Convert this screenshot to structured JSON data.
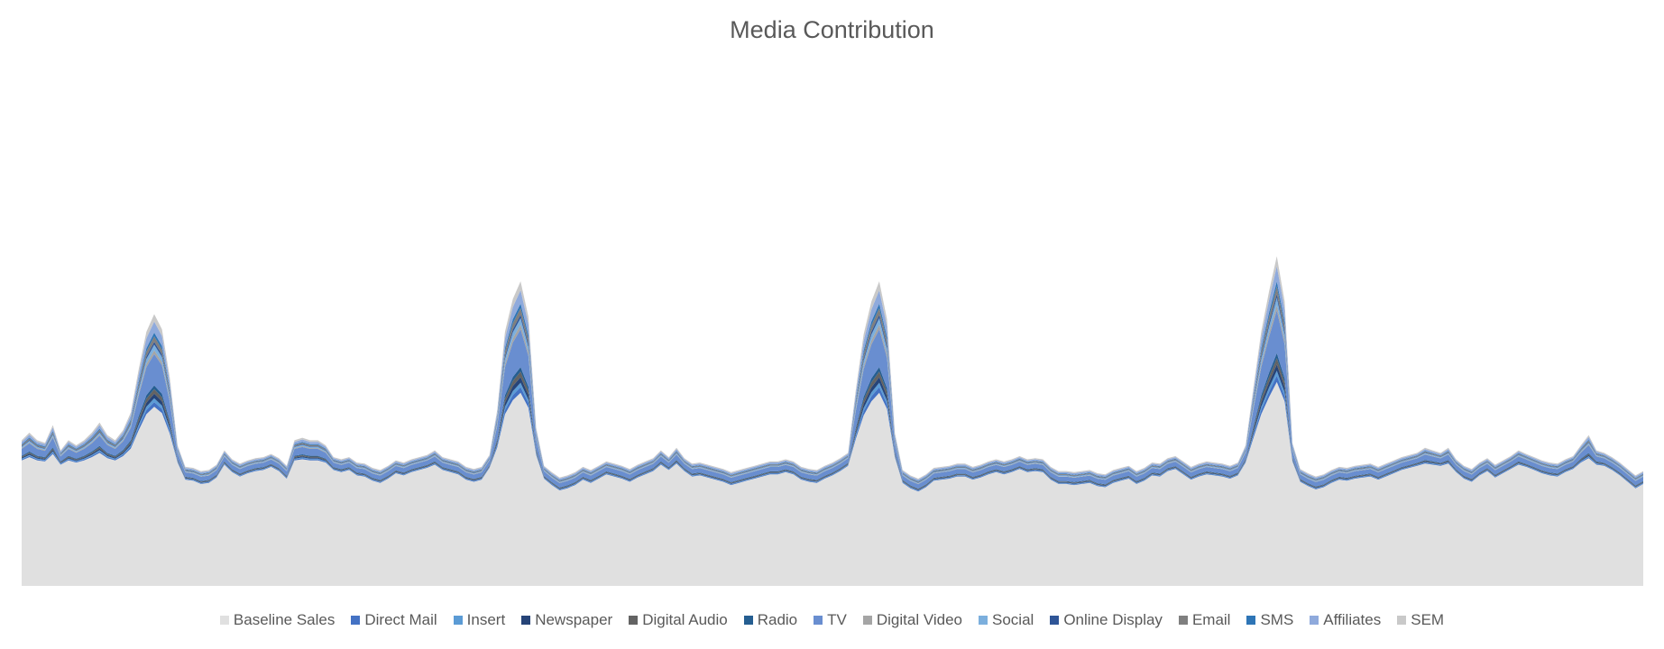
{
  "chart_data": {
    "type": "area",
    "stacked": true,
    "title": "Media Contribution",
    "xlabel": "",
    "ylabel": "",
    "ylim": [
      0,
      420
    ],
    "grid": false,
    "legend_position": "bottom",
    "x_count": 209,
    "baseline": [
      117,
      120,
      117,
      116,
      123,
      113,
      117,
      115,
      117,
      120,
      124,
      119,
      117,
      121,
      128,
      145,
      160,
      167,
      161,
      142,
      115,
      99,
      98,
      95,
      96,
      101,
      113,
      106,
      102,
      105,
      107,
      108,
      111,
      107,
      100,
      117,
      118,
      117,
      117,
      115,
      108,
      106,
      108,
      103,
      102,
      98,
      96,
      100,
      105,
      103,
      106,
      108,
      110,
      113,
      108,
      106,
      104,
      99,
      97,
      99,
      110,
      129,
      160,
      173,
      180,
      166,
      122,
      100,
      94,
      89,
      91,
      94,
      99,
      96,
      100,
      104,
      102,
      100,
      97,
      101,
      104,
      107,
      113,
      108,
      114,
      107,
      102,
      103,
      101,
      99,
      97,
      94,
      96,
      98,
      100,
      102,
      104,
      104,
      106,
      104,
      99,
      97,
      96,
      100,
      103,
      107,
      112,
      137,
      159,
      172,
      180,
      165,
      120,
      96,
      91,
      88,
      92,
      98,
      99,
      100,
      102,
      102,
      99,
      101,
      104,
      106,
      104,
      106,
      109,
      106,
      107,
      106,
      99,
      95,
      95,
      94,
      95,
      96,
      93,
      92,
      96,
      98,
      100,
      95,
      98,
      103,
      102,
      107,
      109,
      104,
      99,
      102,
      104,
      103,
      102,
      100,
      103,
      115,
      138,
      160,
      176,
      190,
      172,
      116,
      97,
      93,
      90,
      92,
      96,
      99,
      98,
      100,
      101,
      102,
      99,
      102,
      105,
      108,
      110,
      112,
      114,
      113,
      112,
      114,
      106,
      100,
      97,
      103,
      107,
      101,
      105,
      109,
      113,
      111,
      108,
      105,
      103,
      102,
      106,
      109,
      115,
      119,
      113,
      112,
      108,
      103,
      97,
      91,
      95
    ],
    "series": [
      {
        "name": "Baseline Sales",
        "color": "#e0e0e0"
      },
      {
        "name": "Direct Mail",
        "color": "#4472c4"
      },
      {
        "name": "Insert",
        "color": "#5b9bd5"
      },
      {
        "name": "Newspaper",
        "color": "#264478"
      },
      {
        "name": "Digital Audio",
        "color": "#636363"
      },
      {
        "name": "Radio",
        "color": "#255e91"
      },
      {
        "name": "TV",
        "color": "#698ed0"
      },
      {
        "name": "Digital Video",
        "color": "#a5a5a5"
      },
      {
        "name": "Social",
        "color": "#7cafdd"
      },
      {
        "name": "Online Display",
        "color": "#2f5597"
      },
      {
        "name": "Email",
        "color": "#7f7f7f"
      },
      {
        "name": "SMS",
        "color": "#2e75b6"
      },
      {
        "name": "Affiliates",
        "color": "#8faadc"
      },
      {
        "name": "SEM",
        "color": "#c9c9c9"
      }
    ]
  }
}
